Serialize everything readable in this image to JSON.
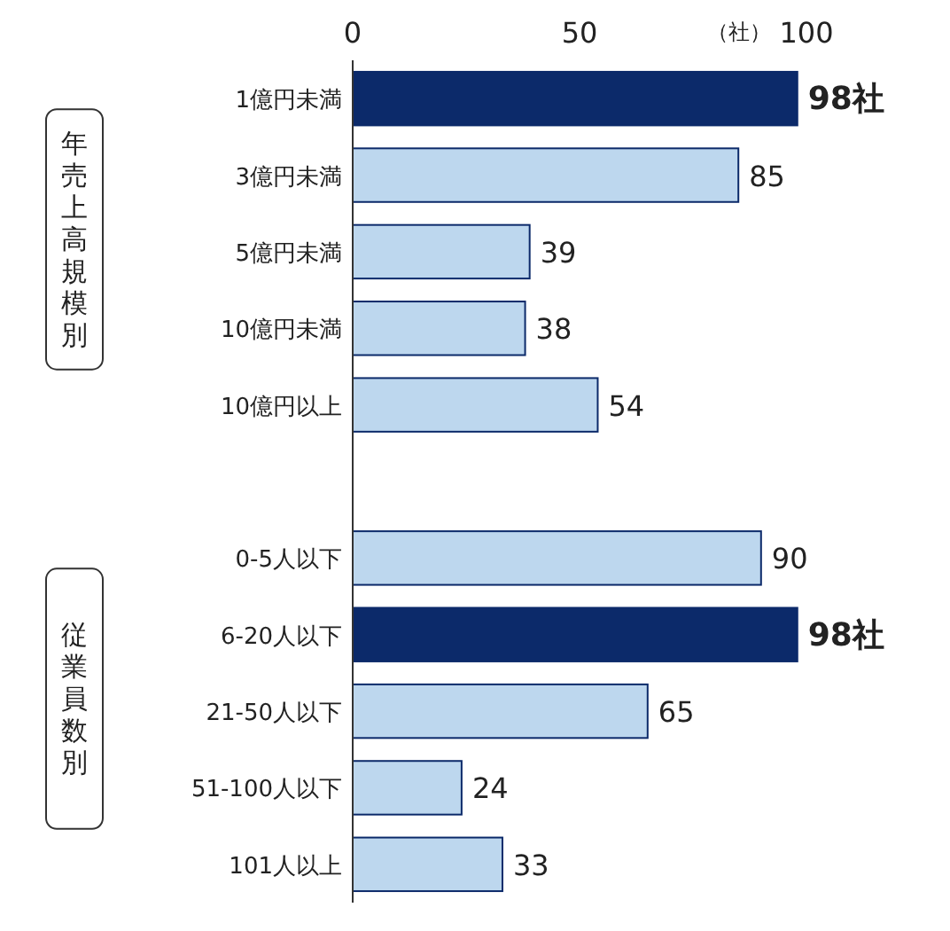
{
  "chart_data": {
    "type": "bar",
    "orientation": "horizontal",
    "xlabel": "（社）",
    "categories": [
      "1億円未満",
      "3億円未満",
      "5億円未満",
      "10億円未満",
      "10億円以上",
      null,
      "0-5人以下",
      "6-20人以下",
      "21-50人以下",
      "51-100人以下",
      "101人以上"
    ],
    "values": [
      98,
      85,
      39,
      38,
      54,
      null,
      90,
      98,
      65,
      24,
      33
    ],
    "colors": [
      "#0c2a6a",
      "#bdd7ee",
      "#bdd7ee",
      "#bdd7ee",
      "#bdd7ee",
      null,
      "#bdd7ee",
      "#0c2a6a",
      "#bdd7ee",
      "#bdd7ee",
      "#bdd7ee"
    ],
    "value_labels": [
      "98社",
      "85",
      "39",
      "38",
      "54",
      null,
      "90",
      "98社",
      "65",
      "24",
      "33"
    ],
    "xlim": [
      0,
      100
    ],
    "xticks": [
      0,
      50,
      100
    ],
    "grid": false,
    "annotations": [
      "年売上高規模別",
      "従業員数別"
    ]
  }
}
